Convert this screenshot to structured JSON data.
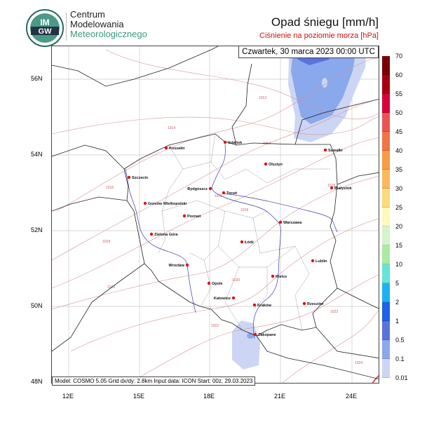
{
  "header": {
    "logo": {
      "emblem_text": "IMGW",
      "line1": "Centrum",
      "line2": "Modelowania",
      "line3": "Meteorologicznego"
    },
    "title": "Opad śniegu [mm/h]",
    "subtitle": "Ciśnienie na poziomie morza [hPa]"
  },
  "map": {
    "datetime": "Czwartek, 30 marca 2023 00:00 UTC",
    "model_info": "Model: COSMO 5.05  Grid dx/dy: 2.8km  Input data: ICON  Start: 00z, 29.03.2023",
    "lat_labels": [
      "56N",
      "54N",
      "52N",
      "50N",
      "48N"
    ],
    "lon_labels": [
      "12E",
      "15E",
      "18E",
      "21E",
      "24E"
    ],
    "cities": [
      "Koszalin",
      "Gdańsk",
      "Szczecin",
      "Olsztyn",
      "Suwałki",
      "Bydgoszcz",
      "Toruń",
      "Białystok",
      "Gorzów Wielkopolski",
      "Poznań",
      "Warszawa",
      "Zielona Góra",
      "Łódź",
      "Lublin",
      "Wrocław",
      "Opole",
      "Kielce",
      "Katowice",
      "Kraków",
      "Rzeszów",
      "Zakopane"
    ],
    "isobar_labels": [
      "1012",
      "1014",
      "1014",
      "1016",
      "1016",
      "1018",
      "1018",
      "1018",
      "1020",
      "1020",
      "1022",
      "1022",
      "1024"
    ],
    "colors": {
      "city_dot": "#e01010",
      "isobar": "#d08080",
      "border": "#222222",
      "river": "#3030a0"
    }
  },
  "colorbar": {
    "labels": [
      "70",
      "60",
      "55",
      "50",
      "45",
      "40",
      "35",
      "30",
      "25",
      "20",
      "15",
      "10",
      "5",
      "2",
      "1",
      "0.5",
      "0.1",
      "0.01"
    ],
    "colors": [
      "#7b0000",
      "#a60010",
      "#d9003a",
      "#e85454",
      "#f07444",
      "#f89c44",
      "#fbb85c",
      "#fbdc7a",
      "#fdf8bc",
      "#d4f4cc",
      "#a8eca0",
      "#66e4d8",
      "#1cb2f2",
      "#1c62e6",
      "#5a72dc",
      "#8aa8ec",
      "#ccd6f4"
    ]
  }
}
